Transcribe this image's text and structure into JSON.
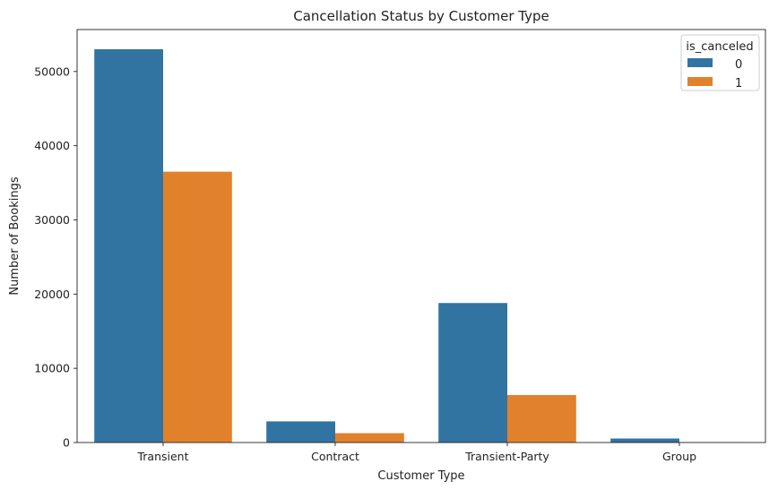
{
  "chart_data": {
    "type": "bar",
    "title": "Cancellation Status by Customer Type",
    "xlabel": "Customer Type",
    "ylabel": "Number of Bookings",
    "categories": [
      "Transient",
      "Contract",
      "Transient-Party",
      "Group"
    ],
    "series": [
      {
        "name": "0",
        "color": "#3274a1",
        "values": [
          53000,
          2850,
          18800,
          540
        ]
      },
      {
        "name": "1",
        "color": "#e1812c",
        "values": [
          36500,
          1260,
          6400,
          60
        ]
      }
    ],
    "ylim": [
      0,
      55650
    ],
    "yticks": [
      0,
      10000,
      20000,
      30000,
      40000,
      50000
    ],
    "ytick_labels": [
      "0",
      "10000",
      "20000",
      "30000",
      "40000",
      "50000"
    ],
    "legend": {
      "title": "is_canceled",
      "position": "top-right"
    },
    "grid": false
  }
}
